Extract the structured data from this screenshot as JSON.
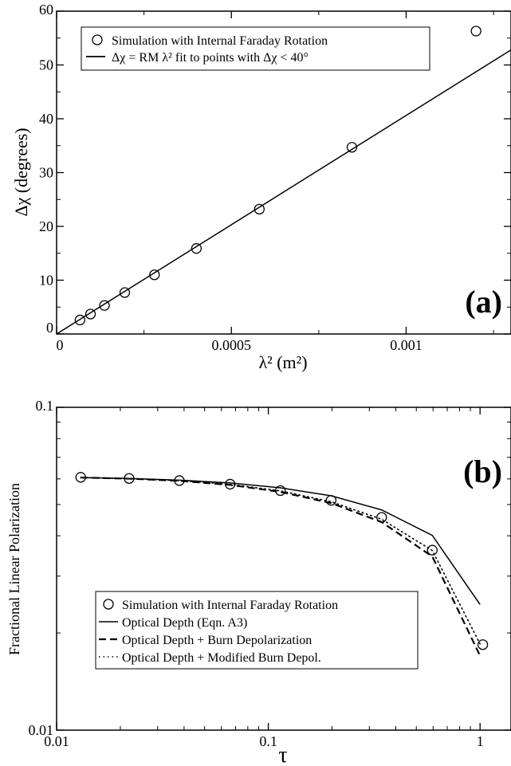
{
  "chart_data": [
    {
      "type": "scatter",
      "panel_label": "(a)",
      "ylabel": "Δχ (degrees)",
      "xlabel": "λ² (m²)",
      "xlim": [
        0,
        0.0013
      ],
      "ylim": [
        0,
        60
      ],
      "xscale": "linear",
      "yscale": "linear",
      "xticks": [
        {
          "v": 0,
          "label": "0"
        },
        {
          "v": 0.0005,
          "label": "0.0005"
        },
        {
          "v": 0.001,
          "label": "0.001"
        }
      ],
      "yticks": [
        {
          "v": 0,
          "label": "0"
        },
        {
          "v": 10,
          "label": "10"
        },
        {
          "v": 20,
          "label": "20"
        },
        {
          "v": 30,
          "label": "30"
        },
        {
          "v": 40,
          "label": "40"
        },
        {
          "v": 50,
          "label": "50"
        },
        {
          "v": 60,
          "label": "60"
        }
      ],
      "grid": false,
      "legend_position": "top-left",
      "series": [
        {
          "name": "Simulation with Internal Faraday Rotation",
          "style": "open-circle",
          "x": [
            6.7e-05,
            9.7e-05,
            0.000137,
            0.000195,
            0.00028,
            0.0004,
            0.00058,
            0.000845,
            0.0012
          ],
          "y": [
            2.6,
            3.7,
            5.3,
            7.7,
            11.0,
            15.9,
            23.2,
            34.7,
            56.3
          ]
        },
        {
          "name": "Δχ = RM λ² fit to points with Δχ < 40°",
          "style": "solid",
          "x": [
            0,
            0.0013
          ],
          "y": [
            0,
            52.8
          ]
        }
      ]
    },
    {
      "type": "line",
      "panel_label": "(b)",
      "ylabel": "Fractional Linear Polarization",
      "xlabel": "τ",
      "xlim": [
        0.01,
        1.4
      ],
      "ylim": [
        0.01,
        0.1
      ],
      "xscale": "log",
      "yscale": "log",
      "xticks": [
        {
          "v": 0.01,
          "label": "0.01"
        },
        {
          "v": 0.1,
          "label": "0.1"
        },
        {
          "v": 1,
          "label": "1"
        }
      ],
      "yticks": [
        {
          "v": 0.01,
          "label": "0.01"
        },
        {
          "v": 0.1,
          "label": "0.1"
        }
      ],
      "grid": false,
      "legend_position": "bottom-left",
      "series": [
        {
          "name": "Simulation with Internal Faraday Rotation",
          "style": "open-circle",
          "x": [
            0.013,
            0.022,
            0.038,
            0.066,
            0.114,
            0.198,
            0.343,
            0.595,
            1.03
          ],
          "y": [
            0.0607,
            0.0602,
            0.0593,
            0.0578,
            0.0552,
            0.0515,
            0.0456,
            0.0361,
            0.0184
          ]
        },
        {
          "name": "Optical Depth (Eqn. A3)",
          "style": "solid",
          "x": [
            0.013,
            0.022,
            0.038,
            0.066,
            0.114,
            0.198,
            0.343,
            0.595,
            1.0
          ],
          "y": [
            0.0606,
            0.0602,
            0.0595,
            0.0583,
            0.0563,
            0.0532,
            0.0481,
            0.0401,
            0.0245
          ]
        },
        {
          "name": "Optical Depth + Burn Depolarization",
          "style": "dashed",
          "x": [
            0.013,
            0.022,
            0.038,
            0.066,
            0.114,
            0.198,
            0.343,
            0.595,
            1.0
          ],
          "y": [
            0.0606,
            0.0601,
            0.0592,
            0.0575,
            0.0547,
            0.0505,
            0.0441,
            0.0345,
            0.017
          ]
        },
        {
          "name": "Optical Depth + Modified Burn Depol.",
          "style": "dotted",
          "x": [
            0.013,
            0.022,
            0.038,
            0.066,
            0.114,
            0.198,
            0.343,
            0.595,
            1.0
          ],
          "y": [
            0.0606,
            0.0601,
            0.0593,
            0.0577,
            0.0551,
            0.051,
            0.045,
            0.036,
            0.0185
          ]
        }
      ]
    }
  ]
}
